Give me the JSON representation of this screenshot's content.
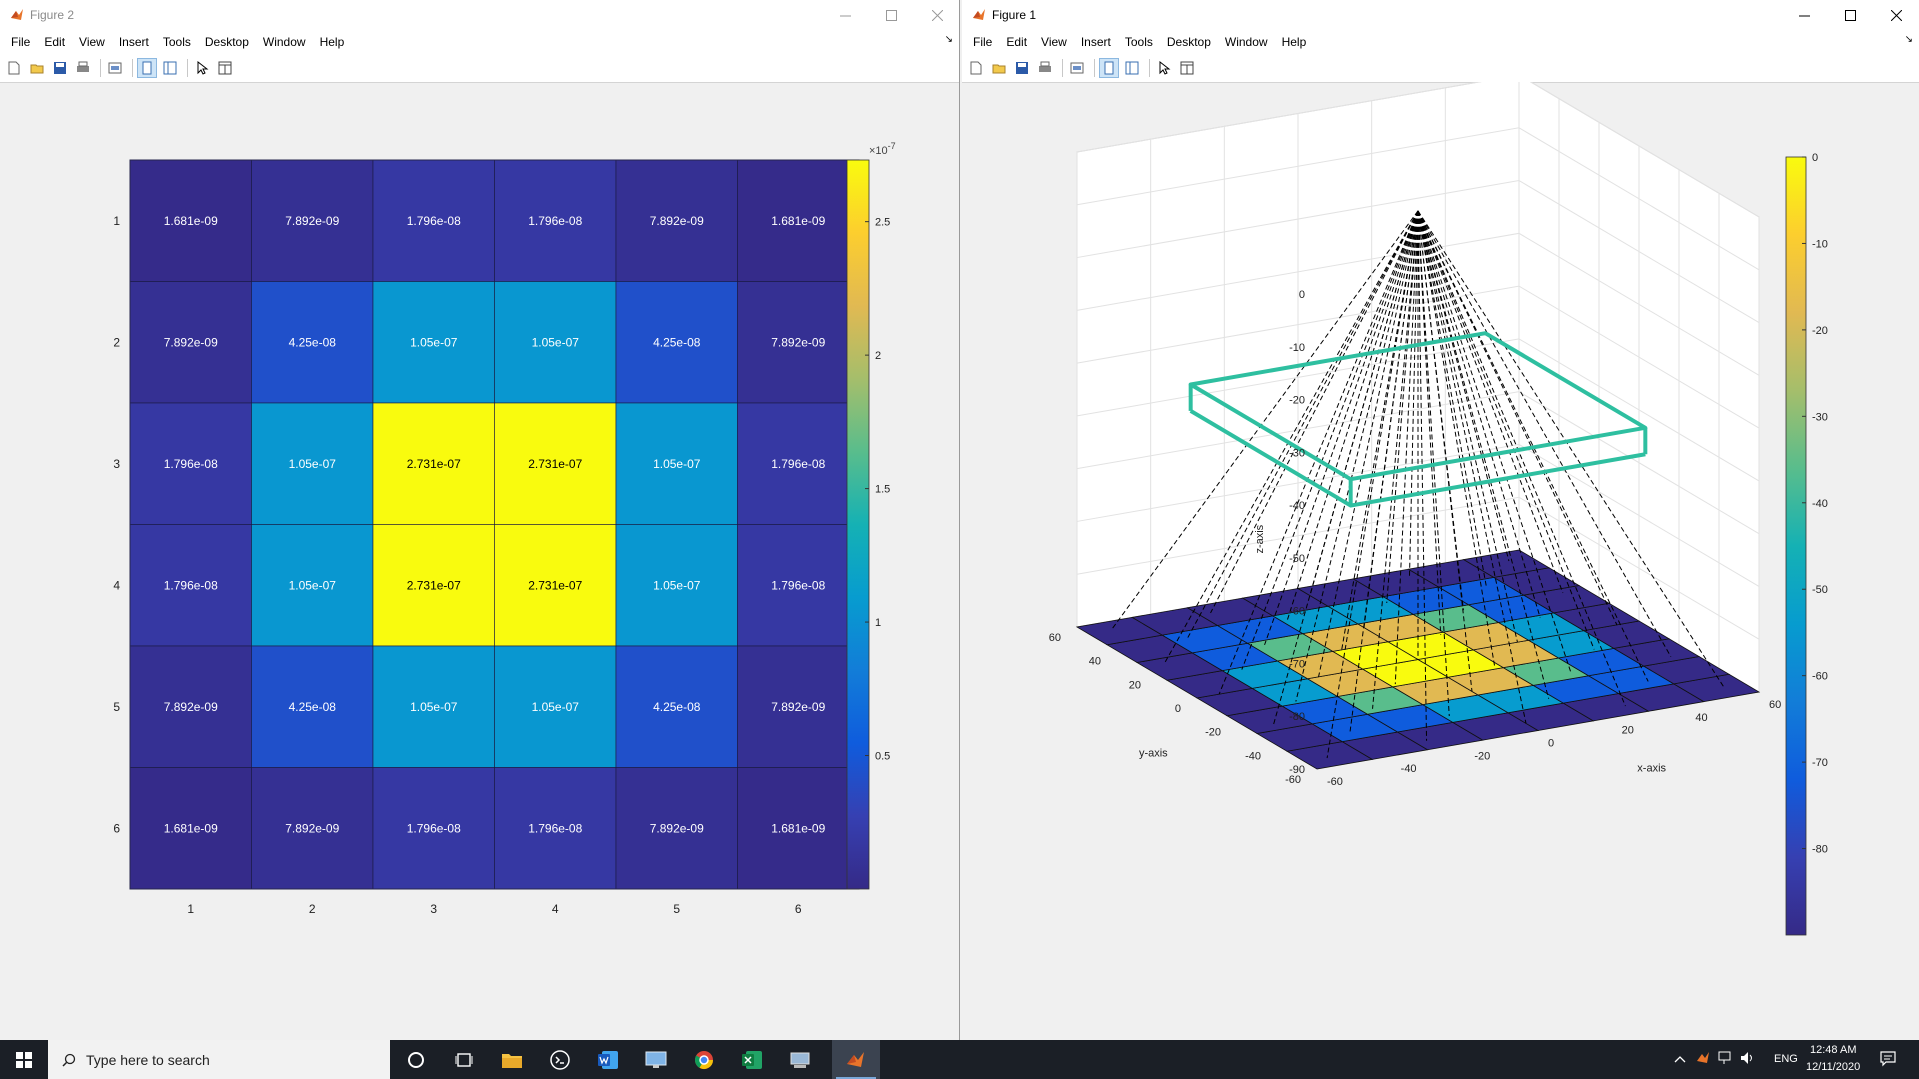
{
  "figure2": {
    "title": "Figure 2",
    "menu": [
      "File",
      "Edit",
      "View",
      "Insert",
      "Tools",
      "Desktop",
      "Window",
      "Help"
    ],
    "chart_data": {
      "type": "heatmap",
      "x_labels": [
        "1",
        "2",
        "3",
        "4",
        "5",
        "6"
      ],
      "y_labels": [
        "1",
        "2",
        "3",
        "4",
        "5",
        "6"
      ],
      "values": [
        [
          1.681e-09,
          7.892e-09,
          1.796e-08,
          1.796e-08,
          7.892e-09,
          1.681e-09
        ],
        [
          7.892e-09,
          4.25e-08,
          1.05e-07,
          1.05e-07,
          4.25e-08,
          7.892e-09
        ],
        [
          1.796e-08,
          1.05e-07,
          2.731e-07,
          2.731e-07,
          1.05e-07,
          1.796e-08
        ],
        [
          1.796e-08,
          1.05e-07,
          2.731e-07,
          2.731e-07,
          1.05e-07,
          1.796e-08
        ],
        [
          7.892e-09,
          4.25e-08,
          1.05e-07,
          1.05e-07,
          4.25e-08,
          7.892e-09
        ],
        [
          1.681e-09,
          7.892e-09,
          1.796e-08,
          1.796e-08,
          7.892e-09,
          1.681e-09
        ]
      ],
      "cell_labels": [
        [
          "1.681e-09",
          "7.892e-09",
          "1.796e-08",
          "1.796e-08",
          "7.892e-09",
          "1.681e-09"
        ],
        [
          "7.892e-09",
          "4.25e-08",
          "1.05e-07",
          "1.05e-07",
          "4.25e-08",
          "7.892e-09"
        ],
        [
          "1.796e-08",
          "1.05e-07",
          "2.731e-07",
          "2.731e-07",
          "1.05e-07",
          "1.796e-08"
        ],
        [
          "1.796e-08",
          "1.05e-07",
          "2.731e-07",
          "2.731e-07",
          "1.05e-07",
          "1.796e-08"
        ],
        [
          "7.892e-09",
          "4.25e-08",
          "1.05e-07",
          "1.05e-07",
          "4.25e-08",
          "7.892e-09"
        ],
        [
          "1.681e-09",
          "7.892e-09",
          "1.796e-08",
          "1.796e-08",
          "7.892e-09",
          "1.681e-09"
        ]
      ],
      "colorbar": {
        "multiplier_base": "×10",
        "multiplier_exp": "-7",
        "ticks": [
          0.5,
          1,
          1.5,
          2,
          2.5
        ],
        "tick_labels": [
          "0.5",
          "1",
          "1.5",
          "2",
          "2.5"
        ],
        "range": [
          0,
          2.731
        ]
      },
      "colormap": "parula"
    }
  },
  "figure1": {
    "title": "Figure 1",
    "menu": [
      "File",
      "Edit",
      "View",
      "Insert",
      "Tools",
      "Desktop",
      "Window",
      "Help"
    ],
    "chart_data": {
      "type": "surface3d",
      "x_label": "x-axis",
      "y_label": "y-axis",
      "z_label": "z-axis",
      "x_ticks": [
        "-60",
        "-40",
        "-20",
        "0",
        "20",
        "40",
        "60"
      ],
      "y_ticks": [
        "-60",
        "-40",
        "-20",
        "0",
        "20",
        "40",
        "60"
      ],
      "z_ticks": [
        "0",
        "-10",
        "-20",
        "-30",
        "-40",
        "-50",
        "-60",
        "-70",
        "-80",
        "-90"
      ],
      "x_range": [
        -60,
        60
      ],
      "y_range": [
        -60,
        60
      ],
      "z_range": [
        -90,
        0
      ],
      "surface_z": -90,
      "grid_levels": [
        [
          0,
          0,
          0,
          0,
          0,
          0,
          0,
          0
        ],
        [
          0,
          1,
          1,
          2,
          2,
          1,
          1,
          0
        ],
        [
          0,
          1,
          3,
          4,
          4,
          3,
          1,
          0
        ],
        [
          0,
          2,
          4,
          5,
          5,
          4,
          2,
          0
        ],
        [
          0,
          2,
          4,
          5,
          5,
          4,
          2,
          0
        ],
        [
          0,
          1,
          3,
          4,
          4,
          3,
          1,
          0
        ],
        [
          0,
          1,
          1,
          2,
          2,
          1,
          1,
          0
        ],
        [
          0,
          0,
          0,
          0,
          0,
          0,
          0,
          0
        ]
      ],
      "box_color": "#2ebfa0",
      "colorbar": {
        "ticks": [
          "0",
          "-10",
          "-20",
          "-30",
          "-40",
          "-50",
          "-60",
          "-70",
          "-80"
        ],
        "range": [
          -90,
          0
        ]
      }
    }
  },
  "taskbar": {
    "search_placeholder": "Type here to search",
    "language": "ENG",
    "time": "12:48 AM",
    "date": "12/11/2020"
  }
}
